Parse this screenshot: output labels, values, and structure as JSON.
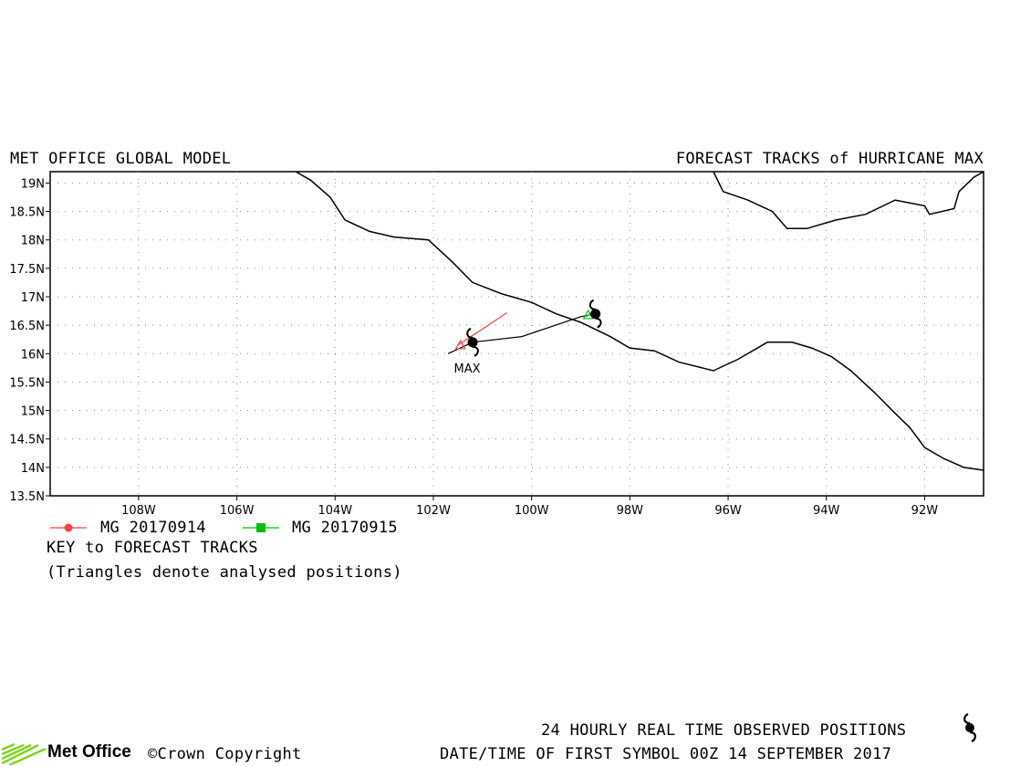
{
  "header": {
    "left_title": "MET OFFICE GLOBAL MODEL",
    "right_title": "FORECAST TRACKS of HURRICANE MAX"
  },
  "axes": {
    "lat_ticks": [
      "19N",
      "18.5N",
      "18N",
      "17.5N",
      "17N",
      "16.5N",
      "16N",
      "15.5N",
      "15N",
      "14.5N",
      "14N",
      "13.5N"
    ],
    "lon_ticks": [
      "108W",
      "106W",
      "104W",
      "102W",
      "100W",
      "98W",
      "96W",
      "94W",
      "92W"
    ]
  },
  "storm_label": "MAX",
  "legend": {
    "items": [
      {
        "label": "MG 20170914",
        "color": "#ff4040",
        "marker": "circle"
      },
      {
        "label": "MG 20170915",
        "color": "#00c000",
        "marker": "square"
      }
    ],
    "key_title": "KEY to FORECAST TRACKS",
    "note": "(Triangles denote analysed positions)"
  },
  "footer": {
    "observed_text": "24 HOURLY REAL TIME OBSERVED POSITIONS",
    "datetime_text": "DATE/TIME OF FIRST SYMBOL 00Z 14 SEPTEMBER 2017",
    "brand": "Met Office",
    "copyright": "©Crown Copyright",
    "observed_symbol_icon": "hurricane-symbol-icon"
  },
  "map": {
    "lon_range": [
      -109.8,
      -90.8
    ],
    "lat_range": [
      13.5,
      19.2
    ],
    "observed_positions": [
      {
        "lon": -101.2,
        "lat": 16.2
      },
      {
        "lon": -98.7,
        "lat": 16.7
      }
    ],
    "observed_track": [
      [
        -101.2,
        16.2
      ],
      [
        -100.2,
        16.3
      ],
      [
        -99.0,
        16.65
      ],
      [
        -98.7,
        16.7
      ]
    ],
    "forecast_tracks": [
      {
        "run": "MG 20170914",
        "color": "#ff4040",
        "points": [
          [
            -101.5,
            16.15
          ],
          [
            -100.5,
            16.72
          ]
        ],
        "analysed": [
          -101.45,
          16.15
        ]
      },
      {
        "run": "MG 20170915",
        "color": "#00c000",
        "points": [
          [
            -98.9,
            16.65
          ],
          [
            -98.7,
            16.75
          ]
        ],
        "analysed": [
          -98.85,
          16.68
        ]
      }
    ],
    "black_segment": [
      [
        -101.7,
        16.0
      ],
      [
        -101.2,
        16.2
      ]
    ],
    "coast_main": [
      [
        -104.8,
        19.2
      ],
      [
        -104.5,
        19.05
      ],
      [
        -104.1,
        18.75
      ],
      [
        -103.8,
        18.35
      ],
      [
        -103.3,
        18.15
      ],
      [
        -102.8,
        18.05
      ],
      [
        -102.1,
        18.0
      ],
      [
        -101.6,
        17.6
      ],
      [
        -101.2,
        17.25
      ],
      [
        -100.6,
        17.05
      ],
      [
        -100.0,
        16.9
      ],
      [
        -99.5,
        16.7
      ],
      [
        -99.0,
        16.55
      ],
      [
        -98.4,
        16.3
      ],
      [
        -98.0,
        16.1
      ],
      [
        -97.5,
        16.05
      ],
      [
        -97.0,
        15.85
      ],
      [
        -96.3,
        15.7
      ],
      [
        -95.8,
        15.9
      ],
      [
        -95.2,
        16.2
      ],
      [
        -94.7,
        16.2
      ],
      [
        -94.3,
        16.1
      ],
      [
        -93.9,
        15.95
      ],
      [
        -93.5,
        15.7
      ],
      [
        -93.0,
        15.3
      ],
      [
        -92.6,
        14.95
      ],
      [
        -92.3,
        14.7
      ],
      [
        -92.0,
        14.35
      ],
      [
        -91.6,
        14.15
      ],
      [
        -91.2,
        14.0
      ],
      [
        -90.8,
        13.95
      ]
    ],
    "coast_gulf": [
      [
        -96.3,
        19.2
      ],
      [
        -96.1,
        18.85
      ],
      [
        -95.6,
        18.7
      ],
      [
        -95.1,
        18.5
      ],
      [
        -94.8,
        18.2
      ],
      [
        -94.4,
        18.2
      ],
      [
        -93.8,
        18.35
      ],
      [
        -93.2,
        18.45
      ],
      [
        -92.6,
        18.7
      ],
      [
        -92.0,
        18.6
      ],
      [
        -91.9,
        18.45
      ],
      [
        -91.4,
        18.55
      ],
      [
        -91.3,
        18.85
      ],
      [
        -91.0,
        19.1
      ],
      [
        -90.8,
        19.2
      ]
    ]
  }
}
